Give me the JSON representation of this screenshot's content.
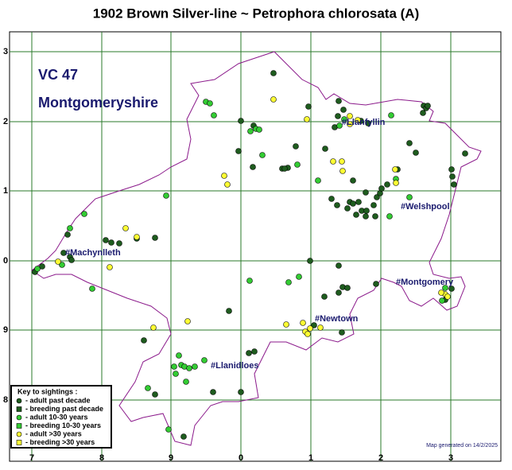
{
  "title": "1902 Brown Silver-line ~ Petrophora chlorosata (A)",
  "vc": "VC 47",
  "county": "Montgomeryshire",
  "grid": {
    "left_labels": [
      "3",
      "2",
      "1",
      "0",
      "9",
      "8"
    ],
    "bottom_labels": [
      "7",
      "8",
      "9",
      "0",
      "1",
      "2",
      "3"
    ]
  },
  "towns": [
    "#Llanfyllin",
    "#Welshpool",
    "#Machynlleth",
    "#Montgomery",
    "#Newtown",
    "#Llanidloes"
  ],
  "key": {
    "title": "Key to sightings :",
    "items": [
      {
        "label": "- adult past decade",
        "color": "#1e5c1e",
        "shape": "circle"
      },
      {
        "label": "- breeding past decade",
        "color": "#1e5c1e",
        "shape": "square"
      },
      {
        "label": "- adult 10-30 years",
        "color": "#33cc33",
        "shape": "circle"
      },
      {
        "label": "- breeding 10-30 years",
        "color": "#33cc33",
        "shape": "square"
      },
      {
        "label": "- adult >30 years",
        "color": "#ffff33",
        "shape": "circle"
      },
      {
        "label": "- breeding >30 years",
        "color": "#ffff33",
        "shape": "square"
      }
    ]
  },
  "footer": "Map generated on 14/2/2025"
}
